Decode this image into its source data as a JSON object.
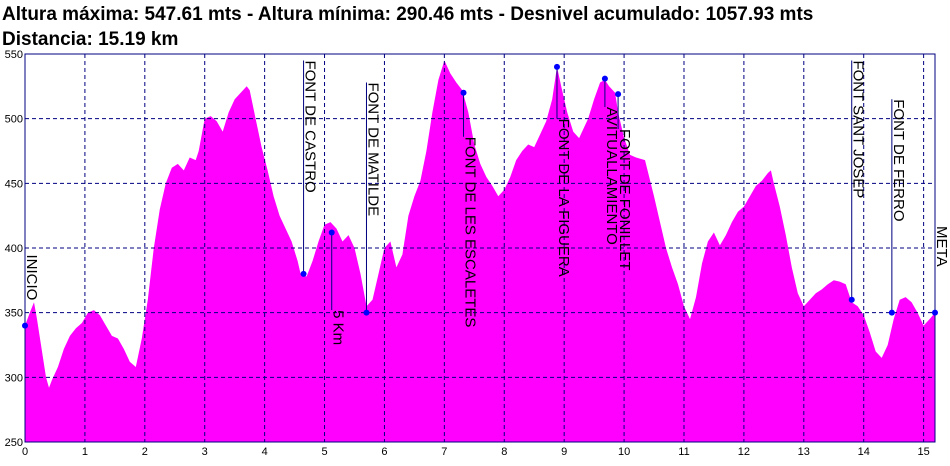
{
  "chart_data": {
    "type": "area",
    "title_line1": "Altura máxima: 547.61 mts - Altura mínima: 290.46 mts - Desnivel acumulado: 1057.93 mts",
    "title_line2": "Distancia: 15.19 km",
    "xlabel": "",
    "ylabel": "",
    "xlim": [
      0,
      15.19
    ],
    "ylim": [
      250,
      550
    ],
    "x_ticks": [
      "0",
      "1",
      "2",
      "3",
      "4",
      "5",
      "6",
      "7",
      "8",
      "9",
      "10",
      "11",
      "12",
      "13",
      "14",
      "15"
    ],
    "y_ticks": [
      "250",
      "300",
      "350",
      "400",
      "450",
      "500",
      "550"
    ],
    "grid": true,
    "fill_color": "#ff00ff",
    "line_color": "#000080",
    "marker_color": "#0000ff",
    "profile": [
      [
        0,
        340
      ],
      [
        0.08,
        350
      ],
      [
        0.15,
        358
      ],
      [
        0.2,
        345
      ],
      [
        0.3,
        315
      ],
      [
        0.35,
        300
      ],
      [
        0.4,
        292
      ],
      [
        0.45,
        298
      ],
      [
        0.55,
        308
      ],
      [
        0.65,
        322
      ],
      [
        0.75,
        332
      ],
      [
        0.85,
        338
      ],
      [
        0.95,
        342
      ],
      [
        1.05,
        350
      ],
      [
        1.15,
        352
      ],
      [
        1.25,
        348
      ],
      [
        1.35,
        340
      ],
      [
        1.45,
        332
      ],
      [
        1.55,
        330
      ],
      [
        1.65,
        322
      ],
      [
        1.75,
        312
      ],
      [
        1.85,
        308
      ],
      [
        1.95,
        330
      ],
      [
        2.05,
        360
      ],
      [
        2.15,
        400
      ],
      [
        2.25,
        430
      ],
      [
        2.35,
        450
      ],
      [
        2.45,
        462
      ],
      [
        2.55,
        465
      ],
      [
        2.65,
        460
      ],
      [
        2.75,
        470
      ],
      [
        2.85,
        468
      ],
      [
        2.9,
        475
      ],
      [
        3.0,
        500
      ],
      [
        3.1,
        502
      ],
      [
        3.2,
        498
      ],
      [
        3.3,
        490
      ],
      [
        3.4,
        505
      ],
      [
        3.5,
        515
      ],
      [
        3.6,
        520
      ],
      [
        3.7,
        525
      ],
      [
        3.75,
        522
      ],
      [
        3.85,
        500
      ],
      [
        3.95,
        478
      ],
      [
        4.05,
        460
      ],
      [
        4.15,
        440
      ],
      [
        4.25,
        425
      ],
      [
        4.35,
        415
      ],
      [
        4.45,
        405
      ],
      [
        4.55,
        390
      ],
      [
        4.6,
        380
      ],
      [
        4.7,
        378
      ],
      [
        4.8,
        390
      ],
      [
        4.9,
        405
      ],
      [
        5.0,
        418
      ],
      [
        5.1,
        420
      ],
      [
        5.2,
        415
      ],
      [
        5.3,
        405
      ],
      [
        5.4,
        410
      ],
      [
        5.5,
        400
      ],
      [
        5.6,
        380
      ],
      [
        5.7,
        355
      ],
      [
        5.8,
        360
      ],
      [
        5.9,
        380
      ],
      [
        6.0,
        400
      ],
      [
        6.1,
        405
      ],
      [
        6.2,
        385
      ],
      [
        6.3,
        395
      ],
      [
        6.4,
        425
      ],
      [
        6.5,
        440
      ],
      [
        6.6,
        452
      ],
      [
        6.7,
        475
      ],
      [
        6.8,
        505
      ],
      [
        6.9,
        530
      ],
      [
        7.0,
        545
      ],
      [
        7.1,
        535
      ],
      [
        7.2,
        528
      ],
      [
        7.3,
        522
      ],
      [
        7.4,
        505
      ],
      [
        7.5,
        480
      ],
      [
        7.6,
        465
      ],
      [
        7.7,
        455
      ],
      [
        7.8,
        448
      ],
      [
        7.9,
        440
      ],
      [
        8.0,
        445
      ],
      [
        8.1,
        455
      ],
      [
        8.2,
        468
      ],
      [
        8.3,
        475
      ],
      [
        8.4,
        480
      ],
      [
        8.5,
        478
      ],
      [
        8.6,
        488
      ],
      [
        8.7,
        498
      ],
      [
        8.8,
        515
      ],
      [
        8.88,
        540
      ],
      [
        8.95,
        525
      ],
      [
        9.05,
        505
      ],
      [
        9.15,
        490
      ],
      [
        9.25,
        485
      ],
      [
        9.4,
        500
      ],
      [
        9.5,
        515
      ],
      [
        9.6,
        528
      ],
      [
        9.68,
        530
      ],
      [
        9.75,
        525
      ],
      [
        9.85,
        520
      ],
      [
        9.9,
        505
      ],
      [
        10.0,
        485
      ],
      [
        10.1,
        472
      ],
      [
        10.2,
        470
      ],
      [
        10.35,
        468
      ],
      [
        10.5,
        440
      ],
      [
        10.6,
        420
      ],
      [
        10.7,
        400
      ],
      [
        10.8,
        385
      ],
      [
        10.9,
        372
      ],
      [
        11.0,
        355
      ],
      [
        11.1,
        345
      ],
      [
        11.2,
        362
      ],
      [
        11.3,
        388
      ],
      [
        11.4,
        405
      ],
      [
        11.5,
        412
      ],
      [
        11.6,
        402
      ],
      [
        11.7,
        410
      ],
      [
        11.8,
        420
      ],
      [
        11.9,
        428
      ],
      [
        12.0,
        432
      ],
      [
        12.1,
        440
      ],
      [
        12.2,
        448
      ],
      [
        12.3,
        452
      ],
      [
        12.4,
        458
      ],
      [
        12.45,
        460
      ],
      [
        12.5,
        450
      ],
      [
        12.6,
        432
      ],
      [
        12.7,
        410
      ],
      [
        12.8,
        385
      ],
      [
        12.9,
        365
      ],
      [
        13.0,
        355
      ],
      [
        13.1,
        360
      ],
      [
        13.2,
        365
      ],
      [
        13.3,
        368
      ],
      [
        13.4,
        372
      ],
      [
        13.5,
        375
      ],
      [
        13.6,
        374
      ],
      [
        13.7,
        372
      ],
      [
        13.8,
        358
      ],
      [
        13.9,
        355
      ],
      [
        14.0,
        348
      ],
      [
        14.1,
        335
      ],
      [
        14.2,
        320
      ],
      [
        14.3,
        315
      ],
      [
        14.4,
        325
      ],
      [
        14.5,
        345
      ],
      [
        14.6,
        360
      ],
      [
        14.7,
        362
      ],
      [
        14.8,
        358
      ],
      [
        14.9,
        350
      ],
      [
        15.0,
        340
      ],
      [
        15.1,
        345
      ],
      [
        15.19,
        350
      ]
    ],
    "waypoints": [
      {
        "x": 0.0,
        "y": 340,
        "label": "INICIO",
        "label_top": "y",
        "label_y": 395
      },
      {
        "x": 4.65,
        "y": 380,
        "label": "FONT DE CASTRO",
        "label_y": 545
      },
      {
        "x": 5.12,
        "y": 412,
        "label": "5 Km",
        "label_y": 352
      },
      {
        "x": 5.7,
        "y": 350,
        "label": "FONT DE MATILDE",
        "label_y": 528
      },
      {
        "x": 7.32,
        "y": 520,
        "label": "FONT DE LES ESCALETES",
        "label_y": 486
      },
      {
        "x": 8.88,
        "y": 540,
        "label": "FONT DE LA FIGUERA",
        "label_y": 500
      },
      {
        "x": 9.68,
        "y": 531,
        "label": "AVITUALLAMIENTO",
        "label_y": 509
      },
      {
        "x": 9.9,
        "y": 519,
        "label": "FONT DE FONILLET",
        "label_y": 492
      },
      {
        "x": 13.8,
        "y": 360,
        "label": "FONT SANT JOSEP",
        "label_y": 545
      },
      {
        "x": 14.47,
        "y": 350,
        "label": "FONT DE FERRO",
        "label_y": 515
      },
      {
        "x": 15.19,
        "y": 350,
        "label": "META",
        "label_y": 417
      }
    ]
  }
}
